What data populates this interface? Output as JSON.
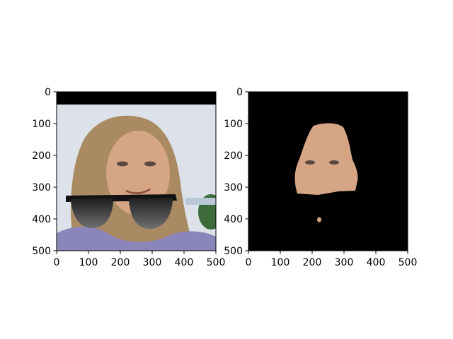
{
  "panels": [
    {
      "id": "left",
      "description": "photo",
      "x_ticks": [
        "0",
        "100",
        "200",
        "300",
        "400",
        "500"
      ],
      "y_ticks": [
        "0",
        "100",
        "200",
        "300",
        "400",
        "500"
      ]
    },
    {
      "id": "right",
      "description": "mask",
      "x_ticks": [
        "0",
        "100",
        "200",
        "300",
        "400",
        "500"
      ],
      "y_ticks": [
        "0",
        "100",
        "200",
        "300",
        "400",
        "500"
      ]
    }
  ],
  "colors": {
    "sky": "#dde2ea",
    "hair": "#a98a63",
    "skin": "#d6a585",
    "black_band": "#000000",
    "mask_bg": "#000000",
    "sunglasses": "#1a1a1a",
    "shirt": "#8b86b9"
  }
}
